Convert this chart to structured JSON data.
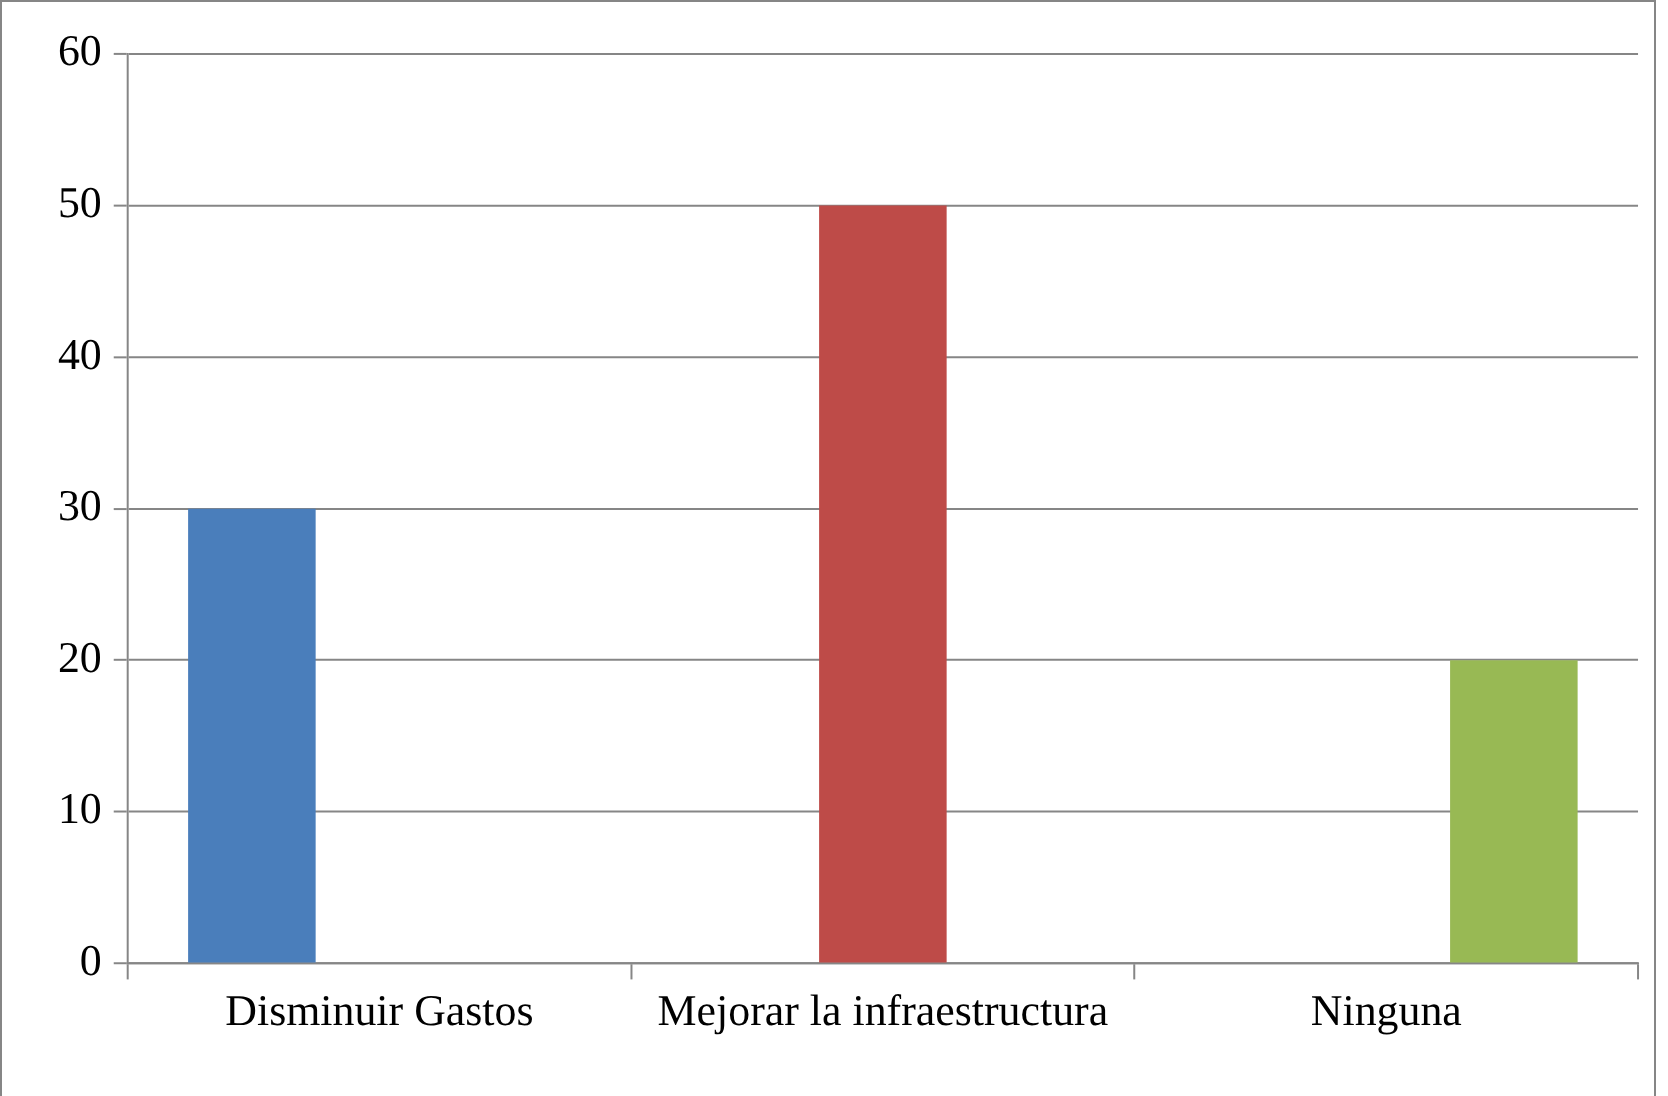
{
  "chart_data": {
    "type": "bar",
    "categories": [
      "Disminuir Gastos",
      "Mejorar la infraestructura",
      "Ninguna"
    ],
    "series": [
      {
        "color": "#4a7ebb",
        "values": [
          30,
          null,
          null
        ]
      },
      {
        "color": "#be4b48",
        "values": [
          null,
          50,
          null
        ]
      },
      {
        "color": "#98b954",
        "values": [
          null,
          null,
          20
        ]
      }
    ],
    "ylim": [
      0,
      60
    ],
    "yticks": [
      0,
      10,
      20,
      30,
      40,
      50,
      60
    ],
    "grid": "y",
    "legend": false
  }
}
